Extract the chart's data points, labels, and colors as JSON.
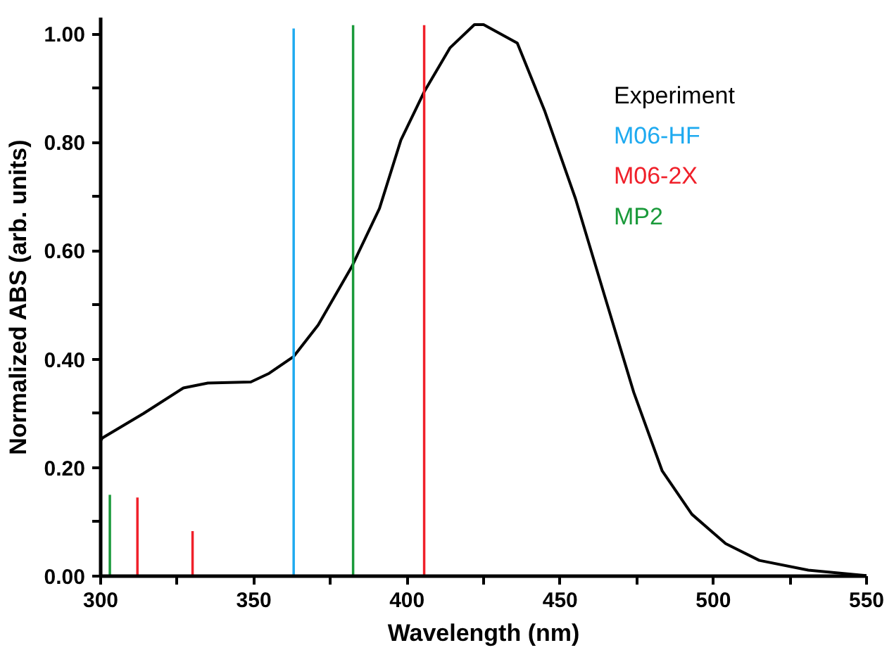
{
  "chart_data": {
    "type": "line",
    "xlabel": "Wavelength (nm)",
    "ylabel": "Normalized ABS (arb. units)",
    "xlim": [
      300,
      550
    ],
    "ylim": [
      0,
      1.03
    ],
    "xticks": [
      300,
      {
        "value": 325,
        "label": null
      },
      350,
      {
        "value": 375,
        "label": null
      },
      400,
      {
        "value": 425,
        "label": null
      },
      450,
      {
        "value": 475,
        "label": null
      },
      500,
      {
        "value": 525,
        "label": null
      },
      550
    ],
    "yticks": [
      {
        "value": 0,
        "label": "0.00"
      },
      {
        "value": 0.1,
        "label": null
      },
      {
        "value": 0.2,
        "label": "0.20"
      },
      {
        "value": 0.3,
        "label": null
      },
      {
        "value": 0.4,
        "label": "0.40"
      },
      {
        "value": 0.5,
        "label": null
      },
      {
        "value": 0.6,
        "label": "0.60"
      },
      {
        "value": 0.7,
        "label": null
      },
      {
        "value": 0.8,
        "label": "0.80"
      },
      {
        "value": 0.9,
        "label": null
      },
      {
        "value": 1.0,
        "label": "1.00"
      }
    ],
    "grid": false,
    "legend": "top right",
    "series": [
      {
        "name": "Experiment",
        "color": "#000000",
        "x": [
          300,
          300.6,
          314,
          327,
          335,
          349,
          355,
          363,
          371,
          382,
          391,
          398,
          405.6,
          414,
          422,
          425,
          436,
          445,
          455,
          464.5,
          474,
          483.3,
          493,
          504,
          515,
          531,
          548,
          550
        ],
        "values": [
          0.25,
          0.255,
          0.3,
          0.347,
          0.356,
          0.358,
          0.374,
          0.405,
          0.463,
          0.571,
          0.678,
          0.804,
          0.893,
          0.974,
          1.017,
          1.017,
          0.983,
          0.857,
          0.696,
          0.517,
          0.339,
          0.194,
          0.114,
          0.06,
          0.029,
          0.011,
          0.002,
          0.001
        ]
      },
      {
        "name": "M06-HF",
        "type": "bar",
        "color": "#1eaaf0",
        "x": [
          363
        ],
        "values": [
          1.01
        ]
      },
      {
        "name": "M06-2X",
        "type": "bar",
        "color": "#f0202a",
        "x": [
          312,
          330,
          405.6
        ],
        "values": [
          0.145,
          0.083,
          1.016
        ]
      },
      {
        "name": "MP2",
        "type": "bar",
        "color": "#1a9a3a",
        "x": [
          303,
          382.4
        ],
        "values": [
          0.15,
          1.016
        ]
      }
    ]
  }
}
